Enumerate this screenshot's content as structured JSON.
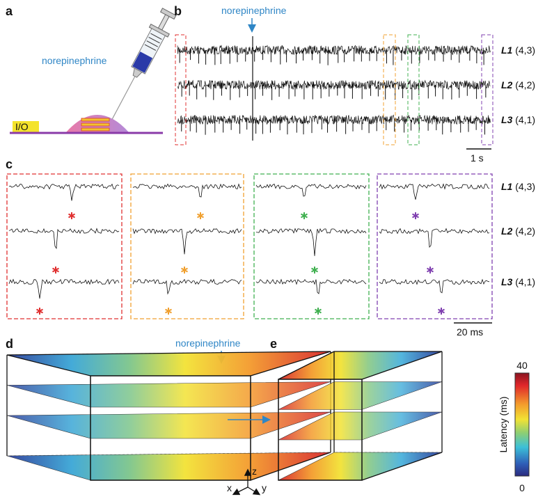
{
  "panels": {
    "a": {
      "label": "a",
      "annotation": "norepinephrine",
      "io": "I/O"
    },
    "b": {
      "label": "b",
      "annotation": "norepinephrine",
      "traces": [
        {
          "name": "L1",
          "coords": "(4,3)"
        },
        {
          "name": "L2",
          "coords": "(4,2)"
        },
        {
          "name": "L3",
          "coords": "(4,1)"
        }
      ],
      "scale": "1 s"
    },
    "c": {
      "label": "c",
      "traces": [
        {
          "name": "L1",
          "coords": "(4,3)"
        },
        {
          "name": "L2",
          "coords": "(4,2)"
        },
        {
          "name": "L3",
          "coords": "(4,1)"
        }
      ],
      "scale": "20 ms"
    },
    "d": {
      "label": "d",
      "annotation": "norepinephrine"
    },
    "e": {
      "label": "e"
    }
  },
  "colorbar": {
    "title": "Latency (ms)",
    "max": 40,
    "min": 0
  },
  "axes": {
    "x": "x",
    "y": "y",
    "z": "z"
  }
}
